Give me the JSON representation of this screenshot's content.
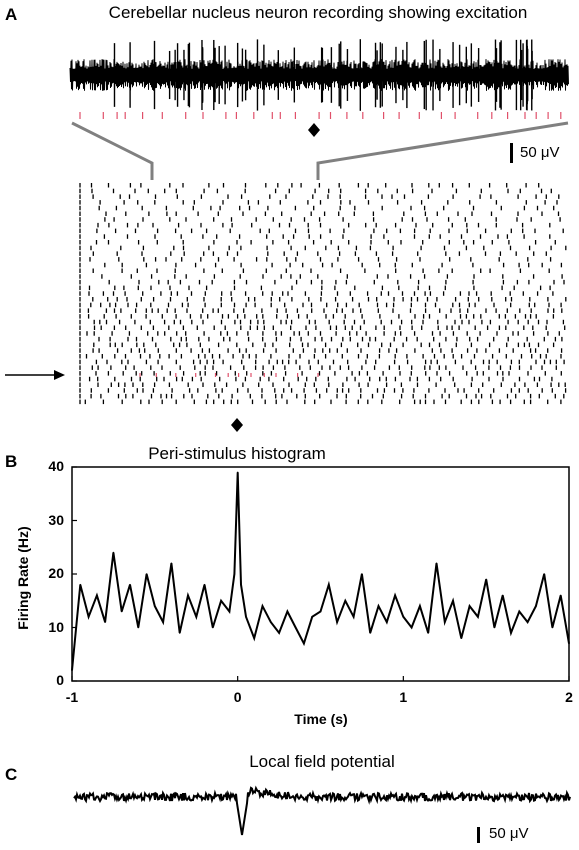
{
  "panels": {
    "a": {
      "letter": "A",
      "title": "Cerebellar nucleus neuron recording showing excitation",
      "scale_bar": "50 μV"
    },
    "b": {
      "letter": "B",
      "title": "Peri-stimulus histogram"
    },
    "c": {
      "letter": "C",
      "title": "Local field potential",
      "scale_bar": "50 μV"
    }
  },
  "colors": {
    "trace": "#000000",
    "spike_markers": "#e0506a",
    "zoom_lines": "#808080"
  },
  "chart_data": {
    "type": "line",
    "title": "Peri-stimulus histogram",
    "xlabel": "Time (s)",
    "ylabel": "Firing Rate (Hz)",
    "xlim": [
      -1,
      2
    ],
    "ylim": [
      0,
      40
    ],
    "x_ticks": [
      "-1",
      "0",
      "1",
      "2"
    ],
    "y_ticks": [
      "0",
      "10",
      "20",
      "30",
      "40"
    ],
    "grid": false,
    "series": [
      {
        "x": [
          -1.0,
          -0.95,
          -0.9,
          -0.85,
          -0.8,
          -0.75,
          -0.7,
          -0.65,
          -0.6,
          -0.55,
          -0.5,
          -0.45,
          -0.4,
          -0.35,
          -0.3,
          -0.25,
          -0.2,
          -0.15,
          -0.1,
          -0.05,
          -0.02,
          0.0,
          0.02,
          0.05,
          0.1,
          0.15,
          0.2,
          0.25,
          0.3,
          0.35,
          0.4,
          0.45,
          0.5,
          0.55,
          0.6,
          0.65,
          0.7,
          0.75,
          0.8,
          0.85,
          0.9,
          0.95,
          1.0,
          1.05,
          1.1,
          1.15,
          1.2,
          1.25,
          1.3,
          1.35,
          1.4,
          1.45,
          1.5,
          1.55,
          1.6,
          1.65,
          1.7,
          1.75,
          1.8,
          1.85,
          1.9,
          1.95,
          2.0
        ],
        "y": [
          2,
          18,
          12,
          16,
          11,
          24,
          13,
          18,
          10,
          20,
          14,
          11,
          22,
          9,
          16,
          12,
          18,
          10,
          15,
          13,
          20,
          39,
          18,
          12,
          8,
          14,
          11,
          9,
          13,
          10,
          7,
          12,
          13,
          18,
          11,
          15,
          12,
          20,
          9,
          14,
          11,
          16,
          12,
          10,
          14,
          9,
          22,
          11,
          15,
          8,
          14,
          12,
          19,
          10,
          16,
          9,
          13,
          11,
          14,
          20,
          10,
          16,
          7
        ]
      }
    ]
  }
}
